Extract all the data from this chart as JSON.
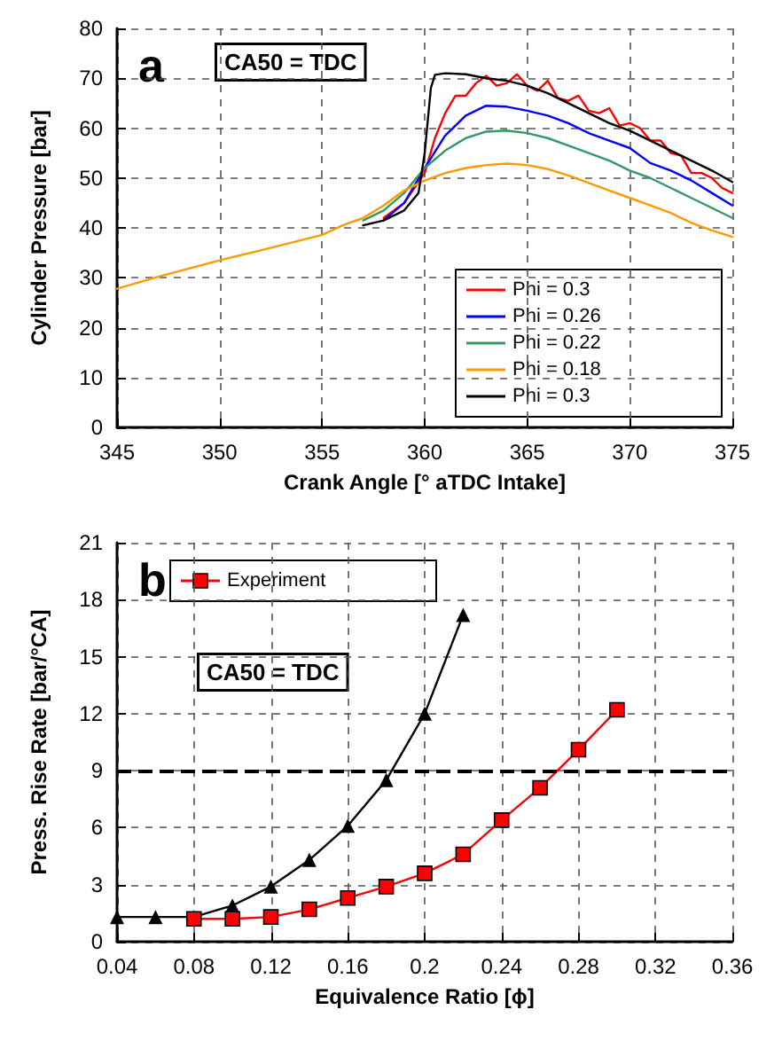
{
  "chart_data": [
    {
      "type": "line",
      "xlabel": "Crank Angle [° aTDC Intake]",
      "ylabel": "Cylinder Pressure [bar]",
      "annotations": [
        "a",
        "CA50 = TDC"
      ],
      "xlim": [
        345,
        375
      ],
      "xticks": [
        345,
        350,
        355,
        360,
        365,
        370,
        375
      ],
      "ylim": [
        0,
        80
      ],
      "yticks": [
        0,
        10,
        20,
        30,
        40,
        50,
        60,
        70,
        80
      ],
      "grid": true,
      "legend": "bottom right",
      "marker": "none",
      "line_style": "solid",
      "series": [
        {
          "name": "Phi = 0.3",
          "color": "#ff0000",
          "x": [
            358,
            359,
            360,
            360.5,
            361,
            361.5,
            362,
            362.5,
            363,
            363.5,
            364,
            364.5,
            365,
            365.5,
            366,
            366.5,
            367,
            367.5,
            368,
            368.5,
            369,
            369.5,
            370,
            370.5,
            371,
            371.5,
            372,
            372.5,
            373,
            373.5,
            374,
            374.5,
            375
          ],
          "values": [
            42,
            45,
            51,
            58,
            63,
            66.5,
            66.5,
            69,
            70.5,
            68.5,
            69,
            70.8,
            68.5,
            67.5,
            69.5,
            66,
            65.5,
            66.5,
            63.5,
            63,
            64,
            60.5,
            61,
            60,
            57.5,
            57.5,
            55,
            54.5,
            51,
            51,
            50,
            48,
            47
          ]
        },
        {
          "name": "Phi = 0.26",
          "color": "#0000ff",
          "x": [
            358,
            359,
            360,
            361,
            362,
            363,
            364,
            365,
            366,
            367,
            368,
            369,
            370,
            371,
            372,
            373,
            374,
            375
          ],
          "values": [
            41.5,
            45,
            52,
            58.5,
            62.5,
            64.5,
            64.3,
            63.5,
            62.5,
            61,
            59,
            57.5,
            56,
            53,
            51.5,
            49.5,
            47,
            44.5
          ]
        },
        {
          "name": "Phi = 0.22",
          "color": "#339966",
          "x": [
            357,
            358,
            359,
            360,
            361,
            362,
            363,
            364,
            365,
            366,
            367,
            368,
            369,
            370,
            371,
            372,
            373,
            374,
            375
          ],
          "values": [
            41.5,
            43.5,
            47,
            52,
            55.5,
            58,
            59.3,
            59.5,
            59,
            58,
            56.5,
            55,
            53.5,
            51.5,
            50,
            48,
            46,
            44,
            42
          ]
        },
        {
          "name": "Phi = 0.18",
          "color": "#ff9900",
          "x": [
            345,
            347,
            350,
            352,
            355,
            356,
            357,
            358,
            359,
            360,
            361,
            362,
            363,
            364,
            365,
            366,
            367,
            368,
            369,
            370,
            371,
            372,
            373,
            374,
            375
          ],
          "values": [
            27.8,
            30.2,
            33.5,
            35.5,
            38.6,
            40.5,
            42,
            44.5,
            47.5,
            49.5,
            51,
            52,
            52.6,
            52.9,
            52.6,
            51.8,
            50.5,
            49,
            47.5,
            46,
            44.5,
            43,
            41,
            39.5,
            38.2
          ]
        },
        {
          "name": "Phi = 0.3",
          "color": "#000000",
          "x": [
            357,
            358,
            359,
            359.7,
            360,
            360.3,
            360.5,
            361,
            362,
            363,
            364,
            365,
            366,
            367,
            368,
            369,
            370,
            371,
            372,
            373,
            374,
            375
          ],
          "values": [
            40.5,
            41.5,
            43.5,
            47,
            55,
            68,
            70.7,
            71,
            70.8,
            70,
            69.5,
            68.5,
            67,
            65,
            63,
            61,
            59.5,
            57.5,
            55.5,
            53.5,
            51.5,
            49.2
          ]
        }
      ]
    },
    {
      "type": "line",
      "xlabel": "Equivalence Ratio [ϕ]",
      "ylabel": "Press. Rise Rate [bar/°CA]",
      "annotations": [
        "b",
        "CA50 = TDC"
      ],
      "xlim": [
        0.04,
        0.36
      ],
      "xticks": [
        0.04,
        0.08,
        0.12,
        0.16,
        0.2,
        0.24,
        0.28,
        0.32,
        0.36
      ],
      "ylim": [
        0,
        21
      ],
      "yticks": [
        0,
        3,
        6,
        9,
        12,
        15,
        18,
        21
      ],
      "grid": true,
      "legend": "top left",
      "line_style": "solid",
      "ref_lines": [
        {
          "axis": "y",
          "value": 9,
          "color": "#000000",
          "line_style": "dashed"
        }
      ],
      "series": [
        {
          "color": "#000000",
          "marker": "triangle",
          "x": [
            0.04,
            0.06,
            0.08,
            0.1,
            0.12,
            0.14,
            0.16,
            0.18,
            0.2,
            0.22
          ],
          "values": [
            1.3,
            1.3,
            1.3,
            1.9,
            2.9,
            4.3,
            6.1,
            8.5,
            12,
            17.2
          ]
        },
        {
          "name": "Experiment",
          "color": "#ff0000",
          "marker": "square",
          "x": [
            0.08,
            0.1,
            0.12,
            0.14,
            0.16,
            0.18,
            0.2,
            0.22,
            0.24,
            0.26,
            0.28,
            0.3
          ],
          "values": [
            1.2,
            1.2,
            1.3,
            1.7,
            2.3,
            2.9,
            3.6,
            4.6,
            6.4,
            8.1,
            10.1,
            12.2
          ]
        }
      ]
    }
  ]
}
